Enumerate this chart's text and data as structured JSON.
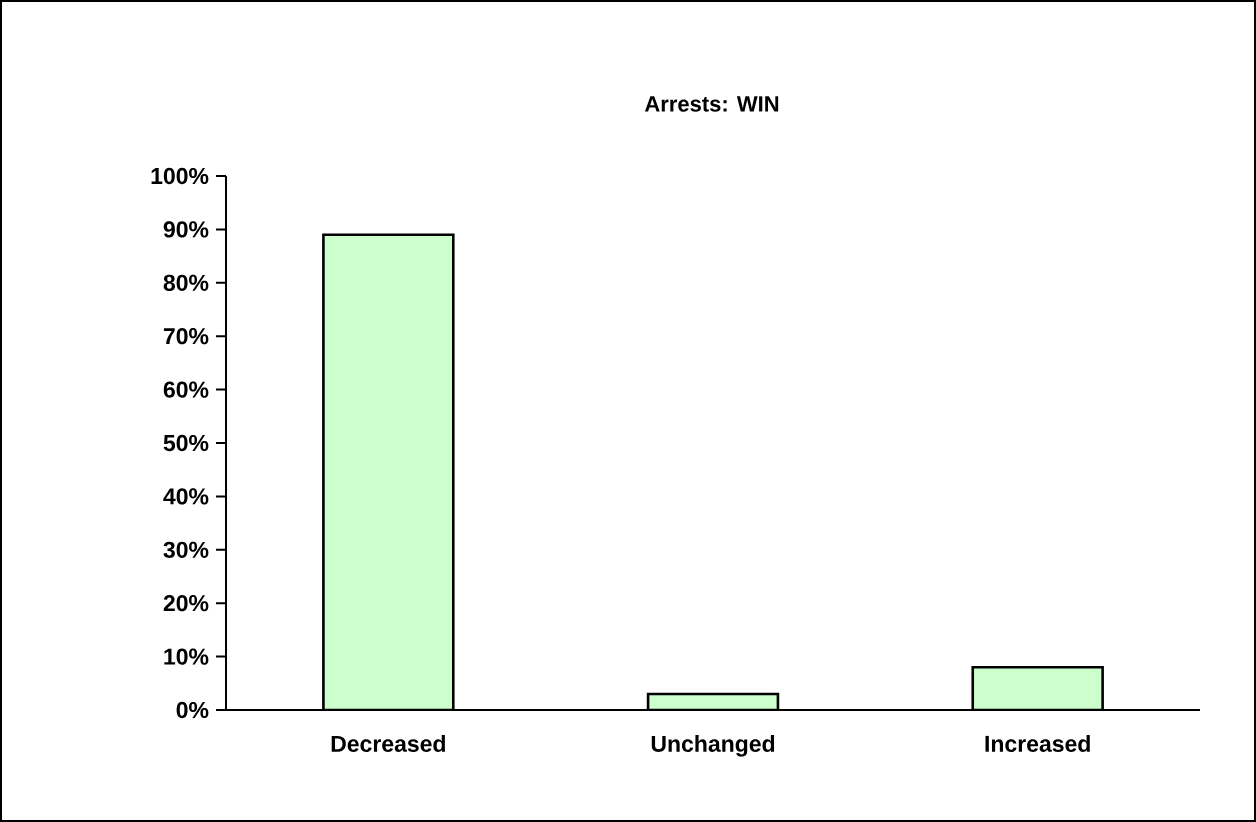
{
  "chart_data": {
    "type": "bar",
    "title": "Arrests: WIN",
    "categories": [
      "Decreased",
      "Unchanged",
      "Increased"
    ],
    "values": [
      89,
      3,
      8
    ],
    "color": "#ccffcc",
    "ylim": [
      0,
      100
    ],
    "yticks": [
      {
        "value": 0,
        "label": "0%"
      },
      {
        "value": 10,
        "label": "10%"
      },
      {
        "value": 20,
        "label": "20%"
      },
      {
        "value": 30,
        "label": "30%"
      },
      {
        "value": 40,
        "label": "40%"
      },
      {
        "value": 50,
        "label": "50%"
      },
      {
        "value": 60,
        "label": "60%"
      },
      {
        "value": 70,
        "label": "70%"
      },
      {
        "value": 80,
        "label": "80%"
      },
      {
        "value": 90,
        "label": "90%"
      },
      {
        "value": 100,
        "label": "100%"
      }
    ]
  }
}
